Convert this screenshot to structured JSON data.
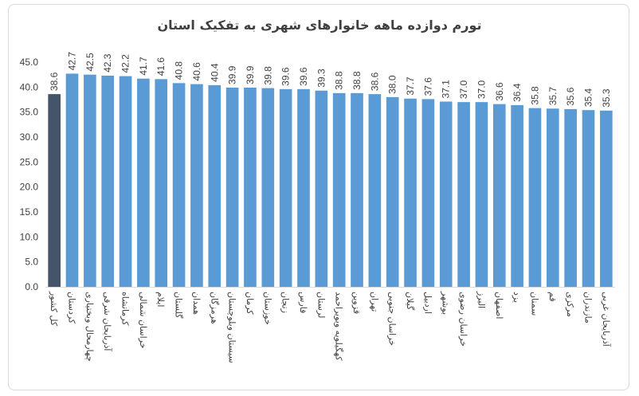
{
  "chart_data": {
    "type": "bar",
    "title": "تورم دوازده ماهه خانوارهای شهری به تفکیک استان",
    "xlabel": "",
    "ylabel": "",
    "ylim": [
      0,
      45
    ],
    "yticks": [
      "0.0",
      "5.0",
      "10.0",
      "15.0",
      "20.0",
      "25.0",
      "30.0",
      "35.0",
      "40.0",
      "45.0"
    ],
    "grid": false,
    "legend": "none",
    "colors": {
      "highlight": "#44546a",
      "default": "#5b9bd5"
    },
    "categories": [
      "کل کشور",
      "کردستان",
      "چهارمحال وبختیاری",
      "آذربایجان شرقی",
      "کرمانشاه",
      "خراسان شمالی",
      "ایلام",
      "گلستان",
      "همدان",
      "هرمزگان",
      "سیستان وبلوچستان",
      "کرمان",
      "خوزستان",
      "زنجان",
      "فارس",
      "لرستان",
      "کهگیلویه وبویراحمد",
      "قزوین",
      "تهران",
      "خراسان جنوبی",
      "گیلان",
      "اردبیل",
      "بوشهر",
      "خراسان رضوی",
      "البرز",
      "اصفهان",
      "یزد",
      "سمنان",
      "قم",
      "مرکزی",
      "مازندران",
      "آذربایجان غربی"
    ],
    "values": [
      38.6,
      42.7,
      42.5,
      42.3,
      42.2,
      41.7,
      41.6,
      40.8,
      40.6,
      40.4,
      39.9,
      39.9,
      39.8,
      39.6,
      39.6,
      39.3,
      38.8,
      38.8,
      38.6,
      38.0,
      37.7,
      37.6,
      37.1,
      37.0,
      37.0,
      36.6,
      36.4,
      35.8,
      35.7,
      35.6,
      35.4,
      35.3
    ],
    "data_labels": [
      "38.6",
      "42.7",
      "42.5",
      "42.3",
      "42.2",
      "41.7",
      "41.6",
      "40.8",
      "40.6",
      "40.4",
      "39.9",
      "39.9",
      "39.8",
      "39.6",
      "39.6",
      "39.3",
      "38.8",
      "38.8",
      "38.6",
      "38.0",
      "37.7",
      "37.6",
      "37.1",
      "37.0",
      "37.0",
      "36.6",
      "36.4",
      "35.8",
      "35.7",
      "35.6",
      "35.4",
      "35.3"
    ]
  }
}
